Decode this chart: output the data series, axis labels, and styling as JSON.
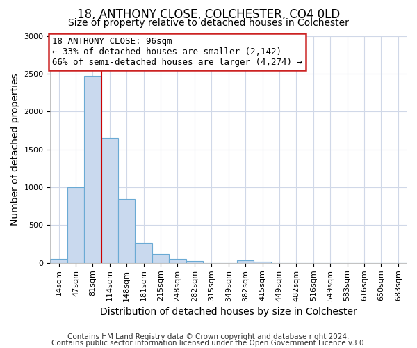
{
  "title": "18, ANTHONY CLOSE, COLCHESTER, CO4 0LD",
  "subtitle": "Size of property relative to detached houses in Colchester",
  "xlabel": "Distribution of detached houses by size in Colchester",
  "ylabel": "Number of detached properties",
  "bar_labels": [
    "14sqm",
    "47sqm",
    "81sqm",
    "114sqm",
    "148sqm",
    "181sqm",
    "215sqm",
    "248sqm",
    "282sqm",
    "315sqm",
    "349sqm",
    "382sqm",
    "415sqm",
    "449sqm",
    "482sqm",
    "516sqm",
    "549sqm",
    "583sqm",
    "616sqm",
    "650sqm",
    "683sqm"
  ],
  "bar_values": [
    55,
    1000,
    2475,
    1650,
    840,
    265,
    120,
    50,
    30,
    0,
    0,
    35,
    18,
    0,
    0,
    0,
    0,
    0,
    0,
    0,
    0
  ],
  "bar_color": "#c9d9ee",
  "bar_edge_color": "#6aaad4",
  "vline_color": "#cc0000",
  "vline_x_index": 2.5,
  "annotation_text": "18 ANTHONY CLOSE: 96sqm\n← 33% of detached houses are smaller (2,142)\n66% of semi-detached houses are larger (4,274) →",
  "annotation_box_facecolor": "white",
  "annotation_box_edgecolor": "#cc2222",
  "ylim": [
    0,
    3000
  ],
  "yticks": [
    0,
    500,
    1000,
    1500,
    2000,
    2500,
    3000
  ],
  "figure_facecolor": "#ffffff",
  "axes_facecolor": "#ffffff",
  "grid_color": "#d0d8e8",
  "title_fontsize": 12,
  "subtitle_fontsize": 10,
  "axis_label_fontsize": 10,
  "tick_fontsize": 8,
  "annotation_fontsize": 9,
  "footer_fontsize": 7.5,
  "footer1": "Contains HM Land Registry data © Crown copyright and database right 2024.",
  "footer2": "Contains public sector information licensed under the Open Government Licence v3.0."
}
